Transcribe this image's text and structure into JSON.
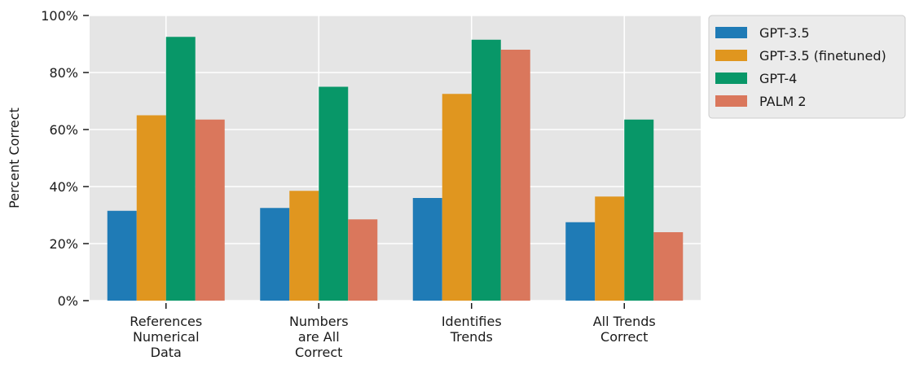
{
  "chart_data": {
    "type": "bar",
    "title": "",
    "xlabel": "",
    "ylabel": "Percent Correct",
    "ylim": [
      0,
      100
    ],
    "yticks": [
      "0%",
      "20%",
      "40%",
      "60%",
      "80%",
      "100%"
    ],
    "grid": true,
    "legend_position": "outside-top-right",
    "categories": [
      [
        "References",
        "Numerical",
        "Data"
      ],
      [
        "Numbers",
        "are All",
        "Correct"
      ],
      [
        "Identifies",
        "Trends"
      ],
      [
        "All Trends",
        "Correct"
      ]
    ],
    "series": [
      {
        "name": "GPT-3.5",
        "color": "#1f7bb6",
        "values": [
          31.5,
          32.5,
          36,
          27.5
        ]
      },
      {
        "name": "GPT-3.5 (finetuned)",
        "color": "#e0961f",
        "values": [
          65,
          38.5,
          72.5,
          36.5
        ]
      },
      {
        "name": "GPT-4",
        "color": "#089768",
        "values": [
          92.5,
          75,
          91.5,
          63.5
        ]
      },
      {
        "name": "PALM 2",
        "color": "#da775c",
        "values": [
          63.5,
          28.5,
          88,
          24
        ]
      }
    ]
  }
}
